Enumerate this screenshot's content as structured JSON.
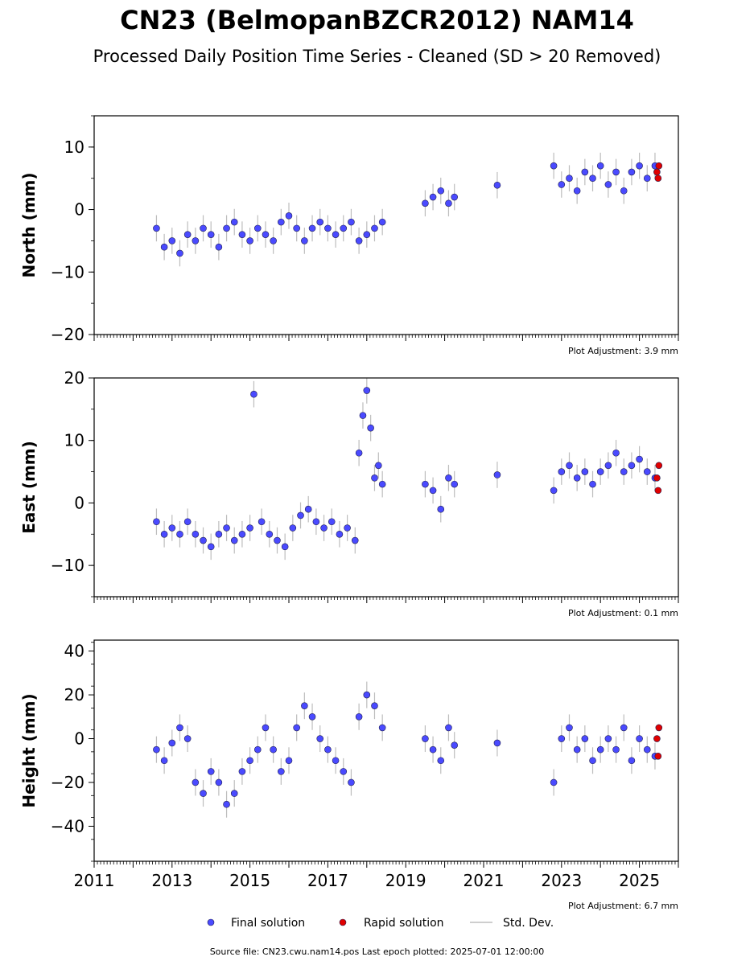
{
  "title": "CN23 (BelmopanBZCR2012) NAM14",
  "subtitle": "Processed Daily Position Time Series - Cleaned (SD > 20 Removed)",
  "source": "Source file: CN23.cwu.nam14.pos  Last epoch plotted: 2025-07-01 12:00:00",
  "colors": {
    "final": "#4a4aff",
    "rapid": "#e00000",
    "stddev": "#bdbdbd",
    "edge": "#202050"
  },
  "legend": {
    "final": "Final solution",
    "rapid": "Rapid solution",
    "stddev": "Std. Dev."
  },
  "chart_data": [
    {
      "type": "scatter",
      "ylabel": "North (mm)",
      "adjustment": "Plot Adjustment: 3.9 mm",
      "xlim": [
        2011,
        2026
      ],
      "ylim": [
        -20,
        15
      ],
      "yticks": [
        -20,
        -10,
        0,
        10
      ],
      "xticks": [
        2011,
        2013,
        2015,
        2017,
        2019,
        2021,
        2023,
        2025
      ],
      "show_xticklabels": false,
      "series": [
        {
          "name": "Final solution",
          "x": [
            2012.6,
            2012.8,
            2013.0,
            2013.2,
            2013.4,
            2013.6,
            2013.8,
            2014.0,
            2014.2,
            2014.4,
            2014.6,
            2014.8,
            2015.0,
            2015.2,
            2015.4,
            2015.6,
            2015.8,
            2016.0,
            2016.2,
            2016.4,
            2016.6,
            2016.8,
            2017.0,
            2017.2,
            2017.4,
            2017.6,
            2017.8,
            2018.0,
            2018.2,
            2018.4,
            2019.5,
            2019.7,
            2019.9,
            2020.1,
            2020.25,
            2021.35,
            2022.8,
            2023.0,
            2023.2,
            2023.4,
            2023.6,
            2023.8,
            2024.0,
            2024.2,
            2024.4,
            2024.6,
            2024.8,
            2025.0,
            2025.2,
            2025.4
          ],
          "y": [
            -3,
            -6,
            -5,
            -7,
            -4,
            -5,
            -3,
            -4,
            -6,
            -3,
            -2,
            -4,
            -5,
            -3,
            -4,
            -5,
            -2,
            -1,
            -3,
            -5,
            -3,
            -2,
            -3,
            -4,
            -3,
            -2,
            -5,
            -4,
            -3,
            -2,
            1,
            2,
            3,
            1,
            2,
            3.9,
            7,
            4,
            5,
            3,
            6,
            5,
            7,
            4,
            6,
            3,
            6,
            7,
            5,
            7
          ]
        },
        {
          "name": "Rapid solution",
          "x": [
            2025.45,
            2025.48,
            2025.5
          ],
          "y": [
            6,
            5,
            7
          ]
        }
      ]
    },
    {
      "type": "scatter",
      "ylabel": "East (mm)",
      "adjustment": "Plot Adjustment: 0.1 mm",
      "xlim": [
        2011,
        2026
      ],
      "ylim": [
        -15,
        20
      ],
      "yticks": [
        -10,
        0,
        10,
        20
      ],
      "xticks": [
        2011,
        2013,
        2015,
        2017,
        2019,
        2021,
        2023,
        2025
      ],
      "show_xticklabels": false,
      "series": [
        {
          "name": "Final solution",
          "x": [
            2012.6,
            2012.8,
            2013.0,
            2013.2,
            2013.4,
            2013.6,
            2013.8,
            2014.0,
            2014.2,
            2014.4,
            2014.6,
            2014.8,
            2015.0,
            2015.1,
            2015.3,
            2015.5,
            2015.7,
            2015.9,
            2016.1,
            2016.3,
            2016.5,
            2016.7,
            2016.9,
            2017.1,
            2017.3,
            2017.5,
            2017.7,
            2017.8,
            2017.9,
            2018.0,
            2018.1,
            2018.2,
            2018.3,
            2018.4,
            2019.5,
            2019.7,
            2019.9,
            2020.1,
            2020.25,
            2021.35,
            2022.8,
            2023.0,
            2023.2,
            2023.4,
            2023.6,
            2023.8,
            2024.0,
            2024.2,
            2024.4,
            2024.6,
            2024.8,
            2025.0,
            2025.2,
            2025.4
          ],
          "y": [
            -3,
            -5,
            -4,
            -5,
            -3,
            -5,
            -6,
            -7,
            -5,
            -4,
            -6,
            -5,
            -4,
            17.4,
            -3,
            -5,
            -6,
            -7,
            -4,
            -2,
            -1,
            -3,
            -4,
            -3,
            -5,
            -4,
            -6,
            8,
            14,
            18,
            12,
            4,
            6,
            3,
            3,
            2,
            -1,
            4,
            3,
            4.5,
            2,
            5,
            6,
            4,
            5,
            3,
            5,
            6,
            8,
            5,
            6,
            7,
            5,
            4
          ]
        },
        {
          "name": "Rapid solution",
          "x": [
            2025.45,
            2025.48,
            2025.5
          ],
          "y": [
            4,
            2,
            6
          ]
        }
      ]
    },
    {
      "type": "scatter",
      "ylabel": "Height (mm)",
      "adjustment": "Plot Adjustment: 6.7 mm",
      "xlim": [
        2011,
        2026
      ],
      "ylim": [
        -56,
        45
      ],
      "yticks": [
        -40,
        -20,
        0,
        20,
        40
      ],
      "xticks": [
        2011,
        2013,
        2015,
        2017,
        2019,
        2021,
        2023,
        2025
      ],
      "show_xticklabels": true,
      "series": [
        {
          "name": "Final solution",
          "x": [
            2012.6,
            2012.8,
            2013.0,
            2013.2,
            2013.4,
            2013.6,
            2013.8,
            2014.0,
            2014.2,
            2014.4,
            2014.6,
            2014.8,
            2015.0,
            2015.2,
            2015.4,
            2015.6,
            2015.8,
            2016.0,
            2016.2,
            2016.4,
            2016.6,
            2016.8,
            2017.0,
            2017.2,
            2017.4,
            2017.6,
            2017.8,
            2018.0,
            2018.2,
            2018.4,
            2019.5,
            2019.7,
            2019.9,
            2020.1,
            2020.25,
            2021.35,
            2022.8,
            2023.0,
            2023.2,
            2023.4,
            2023.6,
            2023.8,
            2024.0,
            2024.2,
            2024.4,
            2024.6,
            2024.8,
            2025.0,
            2025.2,
            2025.4
          ],
          "y": [
            -5,
            -10,
            -2,
            5,
            0,
            -20,
            -25,
            -15,
            -20,
            -30,
            -25,
            -15,
            -10,
            -5,
            5,
            -5,
            -15,
            -10,
            5,
            15,
            10,
            0,
            -5,
            -10,
            -15,
            -20,
            10,
            20,
            15,
            5,
            0,
            -5,
            -10,
            5,
            -3,
            -2,
            -20,
            0,
            5,
            -5,
            0,
            -10,
            -5,
            0,
            -5,
            5,
            -10,
            0,
            -5,
            -8
          ]
        },
        {
          "name": "Rapid solution",
          "x": [
            2025.45,
            2025.48,
            2025.5
          ],
          "y": [
            0,
            -8,
            5
          ]
        }
      ]
    }
  ]
}
